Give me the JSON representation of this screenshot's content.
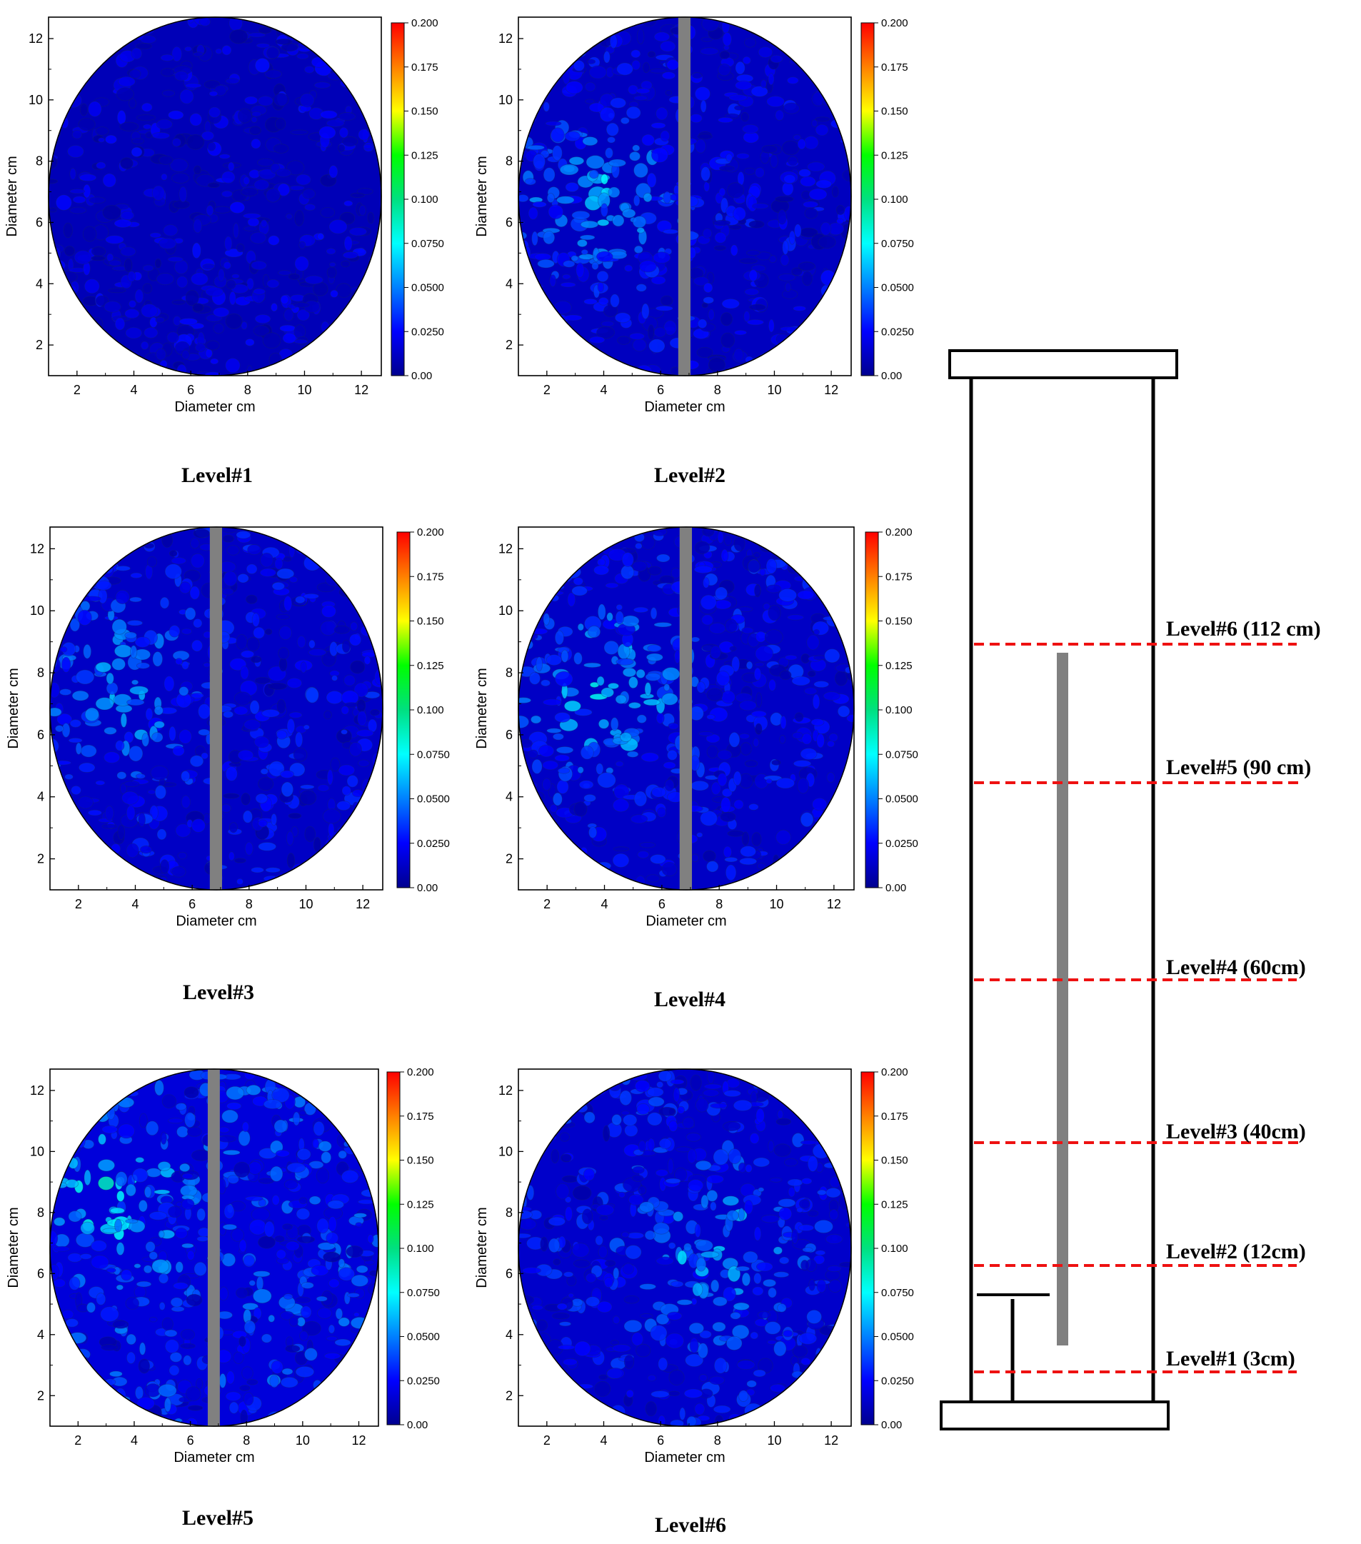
{
  "colors": {
    "scale": [
      "#00008f",
      "#0000ff",
      "#0080ff",
      "#00ffff",
      "#00e080",
      "#00ff00",
      "#ffff00",
      "#ff8000",
      "#ff0000"
    ],
    "probe": "#808080",
    "level_line": "#ee1111",
    "outline": "#000000"
  },
  "chart_data": [
    {
      "type": "heatmap",
      "title": "Level#1",
      "xlabel": "Diameter cm",
      "ylabel": "Diameter cm",
      "xlim": [
        1,
        12.7
      ],
      "ylim": [
        1,
        12.7
      ],
      "xticks": [
        "2",
        "4",
        "6",
        "8",
        "10",
        "12"
      ],
      "yticks": [
        "2",
        "4",
        "6",
        "8",
        "10",
        "12"
      ],
      "colorbar": {
        "min": 0,
        "max": 0.2,
        "ticks": [
          "0.00",
          "0.0250",
          "0.0500",
          "0.0750",
          "0.100",
          "0.125",
          "0.150",
          "0.175",
          "0.200"
        ]
      },
      "probe": false,
      "typical_value": 0.015,
      "hotspot": null
    },
    {
      "type": "heatmap",
      "title": "Level#2",
      "xlabel": "Diameter cm",
      "ylabel": "Diameter cm",
      "xlim": [
        1,
        12.7
      ],
      "ylim": [
        1,
        12.7
      ],
      "xticks": [
        "2",
        "4",
        "6",
        "8",
        "10",
        "12"
      ],
      "yticks": [
        "2",
        "4",
        "6",
        "8",
        "10",
        "12"
      ],
      "colorbar": {
        "min": 0,
        "max": 0.2,
        "ticks": [
          "0.00",
          "0.0250",
          "0.0500",
          "0.0750",
          "0.100",
          "0.125",
          "0.150",
          "0.175",
          "0.200"
        ]
      },
      "probe": true,
      "typical_value": 0.018,
      "hotspot": {
        "x": 3.8,
        "y": 6.8,
        "value": 0.06
      }
    },
    {
      "type": "heatmap",
      "title": "Level#3",
      "xlabel": "Diameter cm",
      "ylabel": "Diameter cm",
      "xlim": [
        1,
        12.7
      ],
      "ylim": [
        1,
        12.7
      ],
      "xticks": [
        "2",
        "4",
        "6",
        "8",
        "10",
        "12"
      ],
      "yticks": [
        "2",
        "4",
        "6",
        "8",
        "10",
        "12"
      ],
      "colorbar": {
        "min": 0,
        "max": 0.2,
        "ticks": [
          "0.00",
          "0.0250",
          "0.0500",
          "0.0750",
          "0.100",
          "0.125",
          "0.150",
          "0.175",
          "0.200"
        ]
      },
      "probe": true,
      "typical_value": 0.02,
      "hotspot": {
        "x": 3.2,
        "y": 7.5,
        "value": 0.06
      }
    },
    {
      "type": "heatmap",
      "title": "Level#4",
      "xlabel": "Diameter cm",
      "ylabel": "Diameter cm",
      "xlim": [
        1,
        12.7
      ],
      "ylim": [
        1,
        12.7
      ],
      "xticks": [
        "2",
        "4",
        "6",
        "8",
        "10",
        "12"
      ],
      "yticks": [
        "2",
        "4",
        "6",
        "8",
        "10",
        "12"
      ],
      "colorbar": {
        "min": 0,
        "max": 0.2,
        "ticks": [
          "0.00",
          "0.0250",
          "0.0500",
          "0.0750",
          "0.100",
          "0.125",
          "0.150",
          "0.175",
          "0.200"
        ]
      },
      "probe": true,
      "typical_value": 0.02,
      "hotspot": {
        "x": 4.0,
        "y": 7.5,
        "value": 0.065
      }
    },
    {
      "type": "heatmap",
      "title": "Level#5",
      "xlabel": "Diameter cm",
      "ylabel": "Diameter cm",
      "xlim": [
        1,
        12.7
      ],
      "ylim": [
        1,
        12.7
      ],
      "xticks": [
        "2",
        "4",
        "6",
        "8",
        "10",
        "12"
      ],
      "yticks": [
        "2",
        "4",
        "6",
        "8",
        "10",
        "12"
      ],
      "colorbar": {
        "min": 0,
        "max": 0.2,
        "ticks": [
          "0.00",
          "0.0250",
          "0.0500",
          "0.0750",
          "0.100",
          "0.125",
          "0.150",
          "0.175",
          "0.200"
        ]
      },
      "probe": true,
      "typical_value": 0.028,
      "hotspot": {
        "x": 3.0,
        "y": 8.5,
        "value": 0.06
      }
    },
    {
      "type": "heatmap",
      "title": "Level#6",
      "xlabel": "Diameter cm",
      "ylabel": "Diameter cm",
      "xlim": [
        1,
        12.7
      ],
      "ylim": [
        1,
        12.7
      ],
      "xticks": [
        "2",
        "4",
        "6",
        "8",
        "10",
        "12"
      ],
      "yticks": [
        "2",
        "4",
        "6",
        "8",
        "10",
        "12"
      ],
      "colorbar": {
        "min": 0,
        "max": 0.2,
        "ticks": [
          "0.00",
          "0.0250",
          "0.0500",
          "0.0750",
          "0.100",
          "0.125",
          "0.150",
          "0.175",
          "0.200"
        ]
      },
      "probe": false,
      "typical_value": 0.022,
      "hotspot": {
        "x": 7.8,
        "y": 6.5,
        "value": 0.055
      }
    }
  ],
  "column_diagram": {
    "levels": [
      {
        "label": "Level#6 (112 cm)",
        "height_cm": 112
      },
      {
        "label": "Level#5 (90 cm)",
        "height_cm": 90
      },
      {
        "label": "Level#4 (60cm)",
        "height_cm": 60
      },
      {
        "label": "Level#3 (40cm)",
        "height_cm": 40
      },
      {
        "label": "Level#2 (12cm)",
        "height_cm": 12
      },
      {
        "label": "Level#1 (3cm)",
        "height_cm": 3
      }
    ]
  }
}
